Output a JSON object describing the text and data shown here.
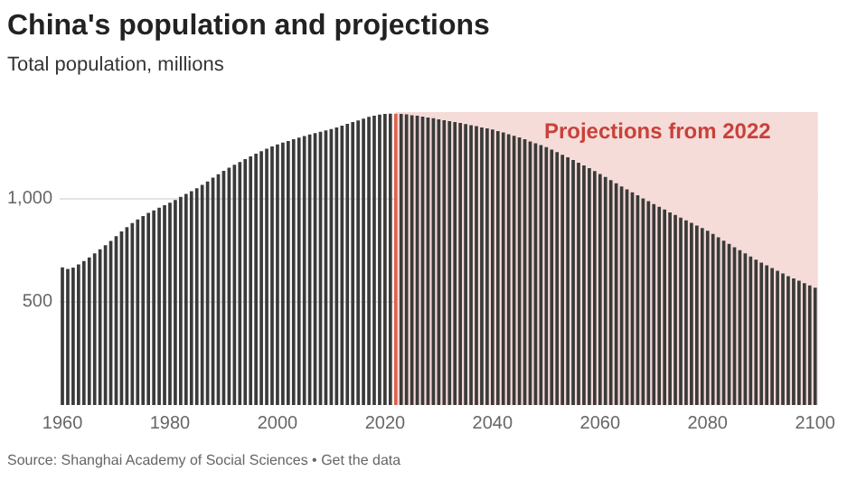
{
  "chart_data": {
    "type": "bar",
    "title": "China's population and projections",
    "subtitle": "Total population, millions",
    "annotations": [
      "Source: Shanghai Academy of Social Sciences • Get the data"
    ],
    "x": [
      1960,
      1961,
      1962,
      1963,
      1964,
      1965,
      1966,
      1967,
      1968,
      1969,
      1970,
      1971,
      1972,
      1973,
      1974,
      1975,
      1976,
      1977,
      1978,
      1979,
      1980,
      1981,
      1982,
      1983,
      1984,
      1985,
      1986,
      1987,
      1988,
      1989,
      1990,
      1991,
      1992,
      1993,
      1994,
      1995,
      1996,
      1997,
      1998,
      1999,
      2000,
      2001,
      2002,
      2003,
      2004,
      2005,
      2006,
      2007,
      2008,
      2009,
      2010,
      2011,
      2012,
      2013,
      2014,
      2015,
      2016,
      2017,
      2018,
      2019,
      2020,
      2021,
      2022,
      2023,
      2024,
      2025,
      2026,
      2027,
      2028,
      2029,
      2030,
      2031,
      2032,
      2033,
      2034,
      2035,
      2036,
      2037,
      2038,
      2039,
      2040,
      2041,
      2042,
      2043,
      2044,
      2045,
      2046,
      2047,
      2048,
      2049,
      2050,
      2051,
      2052,
      2053,
      2054,
      2055,
      2056,
      2057,
      2058,
      2059,
      2060,
      2061,
      2062,
      2063,
      2064,
      2065,
      2066,
      2067,
      2068,
      2069,
      2070,
      2071,
      2072,
      2073,
      2074,
      2075,
      2076,
      2077,
      2078,
      2079,
      2080,
      2081,
      2082,
      2083,
      2084,
      2085,
      2086,
      2087,
      2088,
      2089,
      2090,
      2091,
      2092,
      2093,
      2094,
      2095,
      2096,
      2097,
      2098,
      2099,
      2100
    ],
    "values": [
      667,
      660,
      666,
      682,
      698,
      715,
      735,
      755,
      775,
      796,
      818,
      841,
      862,
      882,
      900,
      916,
      931,
      943,
      956,
      969,
      981,
      994,
      1009,
      1023,
      1036,
      1051,
      1067,
      1084,
      1102,
      1119,
      1135,
      1150,
      1165,
      1178,
      1192,
      1205,
      1218,
      1230,
      1242,
      1253,
      1263,
      1272,
      1280,
      1288,
      1296,
      1304,
      1311,
      1318,
      1325,
      1331,
      1338,
      1345,
      1354,
      1363,
      1372,
      1380,
      1388,
      1397,
      1402,
      1408,
      1411,
      1412,
      1412,
      1411,
      1409,
      1405,
      1402,
      1398,
      1394,
      1390,
      1385,
      1381,
      1376,
      1372,
      1367,
      1362,
      1357,
      1352,
      1346,
      1341,
      1336,
      1328,
      1321,
      1313,
      1305,
      1297,
      1288,
      1278,
      1269,
      1260,
      1250,
      1238,
      1226,
      1213,
      1201,
      1188,
      1175,
      1161,
      1148,
      1134,
      1120,
      1105,
      1090,
      1075,
      1060,
      1045,
      1031,
      1017,
      1002,
      988,
      974,
      961,
      948,
      934,
      921,
      908,
      895,
      883,
      870,
      858,
      845,
      829,
      813,
      797,
      781,
      765,
      750,
      735,
      720,
      705,
      690,
      677,
      664,
      651,
      638,
      625,
      614,
      603,
      591,
      580,
      569
    ],
    "colors": [
      "#3a3a3a",
      "#3a3a3a",
      "#3a3a3a",
      "#3a3a3a",
      "#3a3a3a",
      "#3a3a3a",
      "#3a3a3a",
      "#3a3a3a",
      "#3a3a3a",
      "#3a3a3a",
      "#3a3a3a",
      "#3a3a3a",
      "#3a3a3a",
      "#3a3a3a",
      "#3a3a3a",
      "#3a3a3a",
      "#3a3a3a",
      "#3a3a3a",
      "#3a3a3a",
      "#3a3a3a",
      "#3a3a3a",
      "#3a3a3a",
      "#3a3a3a",
      "#3a3a3a",
      "#3a3a3a",
      "#3a3a3a",
      "#3a3a3a",
      "#3a3a3a",
      "#3a3a3a",
      "#3a3a3a",
      "#3a3a3a",
      "#3a3a3a",
      "#3a3a3a",
      "#3a3a3a",
      "#3a3a3a",
      "#3a3a3a",
      "#3a3a3a",
      "#3a3a3a",
      "#3a3a3a",
      "#3a3a3a",
      "#3a3a3a",
      "#3a3a3a",
      "#3a3a3a",
      "#3a3a3a",
      "#3a3a3a",
      "#3a3a3a",
      "#3a3a3a",
      "#3a3a3a",
      "#3a3a3a",
      "#3a3a3a",
      "#3a3a3a",
      "#3a3a3a",
      "#3a3a3a",
      "#3a3a3a",
      "#3a3a3a",
      "#3a3a3a",
      "#3a3a3a",
      "#3a3a3a",
      "#3a3a3a",
      "#3a3a3a",
      "#3a3a3a",
      "#3a3a3a",
      "#e0604f",
      "#3a3a3a",
      "#3a3a3a",
      "#3a3a3a",
      "#3a3a3a",
      "#3a3a3a",
      "#3a3a3a",
      "#3a3a3a",
      "#3a3a3a",
      "#3a3a3a",
      "#3a3a3a",
      "#3a3a3a",
      "#3a3a3a",
      "#3a3a3a",
      "#3a3a3a",
      "#3a3a3a",
      "#3a3a3a",
      "#3a3a3a",
      "#3a3a3a",
      "#3a3a3a",
      "#3a3a3a",
      "#3a3a3a",
      "#3a3a3a",
      "#3a3a3a",
      "#3a3a3a",
      "#3a3a3a",
      "#3a3a3a",
      "#3a3a3a",
      "#3a3a3a",
      "#3a3a3a",
      "#3a3a3a",
      "#3a3a3a",
      "#3a3a3a",
      "#3a3a3a",
      "#3a3a3a",
      "#3a3a3a",
      "#3a3a3a",
      "#3a3a3a",
      "#3a3a3a",
      "#3a3a3a",
      "#3a3a3a",
      "#3a3a3a",
      "#3a3a3a",
      "#3a3a3a",
      "#3a3a3a",
      "#3a3a3a",
      "#3a3a3a",
      "#3a3a3a",
      "#3a3a3a",
      "#3a3a3a",
      "#3a3a3a",
      "#3a3a3a",
      "#3a3a3a",
      "#3a3a3a",
      "#3a3a3a",
      "#3a3a3a",
      "#3a3a3a",
      "#3a3a3a",
      "#3a3a3a",
      "#3a3a3a",
      "#3a3a3a",
      "#3a3a3a",
      "#3a3a3a",
      "#3a3a3a",
      "#3a3a3a",
      "#3a3a3a",
      "#3a3a3a",
      "#3a3a3a",
      "#3a3a3a",
      "#3a3a3a",
      "#3a3a3a",
      "#3a3a3a",
      "#3a3a3a",
      "#3a3a3a",
      "#3a3a3a",
      "#3a3a3a",
      "#3a3a3a",
      "#3a3a3a",
      "#3a3a3a"
    ],
    "xlim": [
      1959.5,
      2100.5
    ],
    "xticks": [
      1960,
      1980,
      2000,
      2020,
      2040,
      2060,
      2080,
      2100
    ],
    "ylim": [
      0,
      1420
    ],
    "yticks": [
      500,
      {
        "value": 1000,
        "label": "1,000"
      }
    ],
    "grid": "y",
    "bands": [
      {
        "axis": "x",
        "from": 2022,
        "to": 2100.5,
        "label": "Projections from 2022",
        "color": "#f5dcd8"
      }
    ]
  }
}
